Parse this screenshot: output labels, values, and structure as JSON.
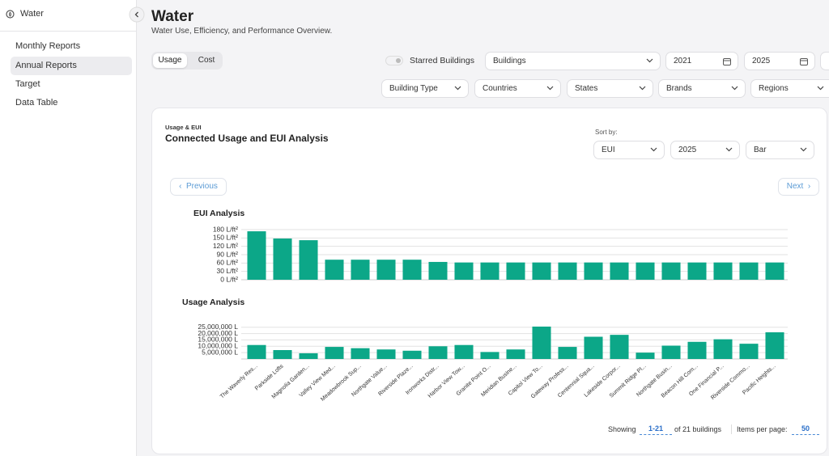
{
  "sidebar": {
    "app": "Water",
    "nav": [
      "Monthly Reports",
      "Annual Reports",
      "Target",
      "Data Table"
    ]
  },
  "header": {
    "title": "Water",
    "subtitle": "Water Use, Efficiency, and Performance Overview."
  },
  "toggle": [
    "Usage",
    "Cost"
  ],
  "filters": {
    "starred": "Starred Buildings",
    "buildings": "Buildings",
    "start_year": "2021",
    "end_year": "2025",
    "dropdowns": [
      "Building Type",
      "Countries",
      "States",
      "Brands",
      "Regions"
    ]
  },
  "card": {
    "eyebrow": "Usage & EUI",
    "title": "Connected Usage and EUI Analysis",
    "sort_label": "Sort by:",
    "sort": [
      "EUI",
      "2025",
      "Bar"
    ],
    "previous": "Previous",
    "next": "Next"
  },
  "charts": [
    {
      "type": "bar",
      "title": "EUI Analysis",
      "color": "#0ca788",
      "grid": true,
      "values": [
        174,
        148,
        142,
        72,
        72,
        72,
        72,
        64,
        62,
        62,
        62,
        62,
        62,
        62,
        62,
        62,
        62,
        62,
        62,
        62,
        62
      ],
      "ylim": [
        0,
        180
      ],
      "yticks": [
        {
          "value": 0,
          "label": "0 L/ft²"
        },
        {
          "value": 30,
          "label": "30 L/ft²"
        },
        {
          "value": 60,
          "label": "60 L/ft²"
        },
        {
          "value": 90,
          "label": "90 L/ft²"
        },
        {
          "value": 120,
          "label": "120 L/ft²"
        },
        {
          "value": 150,
          "label": "150 L/ft²"
        },
        {
          "value": 180,
          "label": "180 L/ft²"
        }
      ]
    },
    {
      "type": "bar",
      "title": "Usage Analysis",
      "color": "#0ca788",
      "grid": true,
      "categories": [
        "The Waverly Res...",
        "Parkside Lofts",
        "Magnolia Garden...",
        "Valley View Med...",
        "Meadowbrook Sup...",
        "Northgate Value...",
        "Riverside Plaze...",
        "Ironworks Distr...",
        "Harbor View Tow...",
        "Granite Point O...",
        "Meridian Busine...",
        "Capitol View To...",
        "Gateway Profess...",
        "Centennial Squa...",
        "Lakeside Corpor...",
        "Summit Ridge Pl...",
        "Northgate Busin...",
        "Beacon Hill Com...",
        "One Financial P...",
        "Riverside Commo...",
        "Pacific Heights..."
      ],
      "values": [
        11000000,
        7000000,
        4500000,
        9500000,
        8500000,
        7500000,
        6500000,
        10000000,
        11000000,
        5500000,
        7500000,
        25500000,
        9500000,
        17500000,
        19000000,
        5000000,
        10500000,
        13500000,
        15500000,
        12000000,
        21000000
      ],
      "ylim": [
        0,
        28000000
      ],
      "yticks": [
        {
          "value": 5000000,
          "label": "5,000,000 L"
        },
        {
          "value": 10000000,
          "label": "10,000,000 L"
        },
        {
          "value": 15000000,
          "label": "15,000,000 L"
        },
        {
          "value": 20000000,
          "label": "20,000,000 L"
        },
        {
          "value": 25000000,
          "label": "25,000,000 L"
        }
      ]
    }
  ],
  "pagination": {
    "showing": "Showing",
    "range": "1-21",
    "of": "of 21 buildings",
    "items_label": "Items per page:",
    "items": "50"
  }
}
